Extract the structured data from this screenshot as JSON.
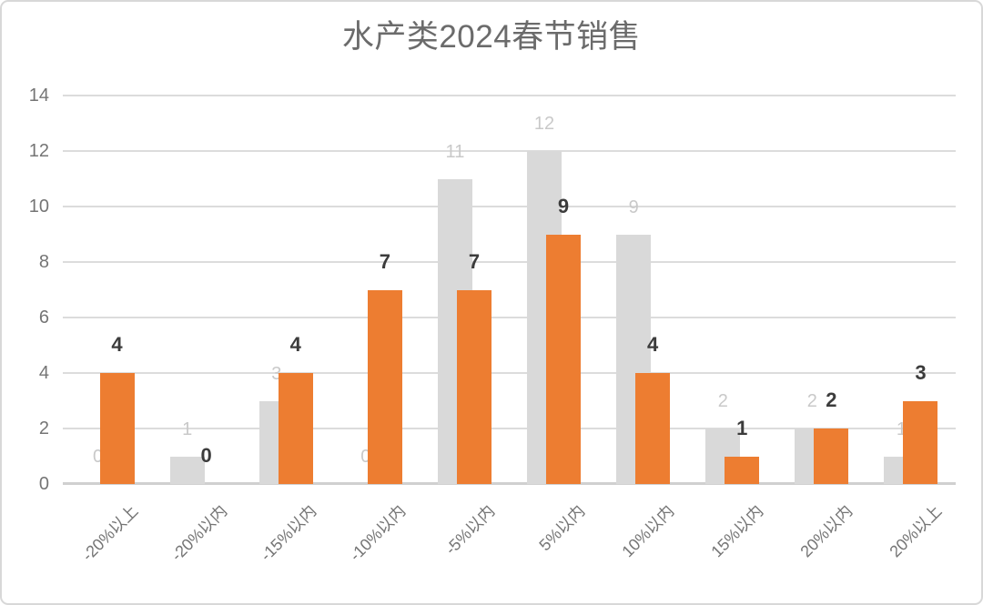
{
  "title": "水产类2024春节销售",
  "chart_data": {
    "type": "bar",
    "title": "水产类2024春节销售",
    "categories": [
      "-20%以上",
      "-20%以内",
      "-15%以内",
      "-10%以内",
      "-5%以内",
      "5%以内",
      "10%以内",
      "15%以内",
      "20%以内",
      "20%以上"
    ],
    "series": [
      {
        "name": "series-gray",
        "values": [
          0,
          1,
          3,
          0,
          11,
          12,
          9,
          2,
          2,
          1
        ]
      },
      {
        "name": "series-orange",
        "values": [
          4,
          0,
          4,
          7,
          7,
          9,
          4,
          1,
          2,
          3
        ]
      }
    ],
    "y_ticks": [
      0,
      2,
      4,
      6,
      8,
      10,
      12,
      14
    ],
    "ylim": [
      0,
      14
    ],
    "xlabel": "",
    "ylabel": "",
    "grid": "horizontal-major",
    "legend_position": "none",
    "value_labels": "outside-end",
    "x_tick_rotation_deg": 45
  },
  "colors": {
    "series_gray": "#d9d9d9",
    "series_orange": "#ed7d31",
    "gray_value_label": "#c9c9c9",
    "orange_value_label": "#3c3c3c",
    "axis_text": "#757575",
    "title_text": "#6b6b6b",
    "gridline": "#dcdcdc",
    "axis_line": "#d0d0d0",
    "frame_border": "#d8d8d8"
  }
}
